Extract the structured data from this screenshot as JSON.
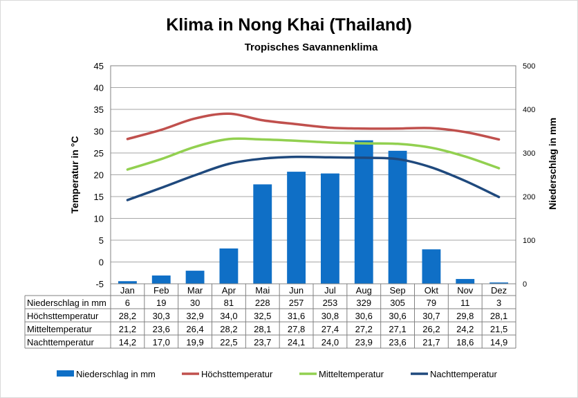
{
  "chart_data": {
    "type": "bar+line",
    "title": "Klima in Nong Khai (Thailand)",
    "subtitle": "Tropisches Savannenklima",
    "categories": [
      "Jan",
      "Feb",
      "Mar",
      "Apr",
      "Mai",
      "Jun",
      "Jul",
      "Aug",
      "Sep",
      "Okt",
      "Nov",
      "Dez"
    ],
    "ylabel_left": "Temperatur in °C",
    "ylabel_right": "Niederschlag in mm",
    "ylim_left": [
      -5,
      45
    ],
    "ylim_right": [
      0,
      500
    ],
    "yticks_left": [
      "45",
      "40",
      "35",
      "30",
      "25",
      "20",
      "15",
      "10",
      "5",
      "0",
      "-5"
    ],
    "yticks_right": [
      "500",
      "400",
      "300",
      "200",
      "100",
      "0"
    ],
    "grid": true,
    "legend_position": "bottom",
    "series": [
      {
        "name": "Niederschlag in mm",
        "kind": "bar",
        "axis": "right",
        "color": "#0f6fc6",
        "values": [
          6,
          19,
          30,
          81,
          228,
          257,
          253,
          329,
          305,
          79,
          11,
          3
        ],
        "labels": [
          "6",
          "19",
          "30",
          "81",
          "228",
          "257",
          "253",
          "329",
          "305",
          "79",
          "11",
          "3"
        ]
      },
      {
        "name": "Höchsttemperatur",
        "kind": "line",
        "axis": "left",
        "color": "#c0504d",
        "values": [
          28.2,
          30.3,
          32.9,
          34.0,
          32.5,
          31.6,
          30.8,
          30.6,
          30.6,
          30.7,
          29.8,
          28.1
        ],
        "labels": [
          "28,2",
          "30,3",
          "32,9",
          "34,0",
          "32,5",
          "31,6",
          "30,8",
          "30,6",
          "30,6",
          "30,7",
          "29,8",
          "28,1"
        ]
      },
      {
        "name": "Mitteltemperatur",
        "kind": "line",
        "axis": "left",
        "color": "#92d050",
        "values": [
          21.2,
          23.6,
          26.4,
          28.2,
          28.1,
          27.8,
          27.4,
          27.2,
          27.1,
          26.2,
          24.2,
          21.5
        ],
        "labels": [
          "21,2",
          "23,6",
          "26,4",
          "28,2",
          "28,1",
          "27,8",
          "27,4",
          "27,2",
          "27,1",
          "26,2",
          "24,2",
          "21,5"
        ]
      },
      {
        "name": "Nachttemperatur",
        "kind": "line",
        "axis": "left",
        "color": "#1f497d",
        "values": [
          14.2,
          17.0,
          19.9,
          22.5,
          23.7,
          24.1,
          24.0,
          23.9,
          23.6,
          21.7,
          18.6,
          14.9
        ],
        "labels": [
          "14,2",
          "17,0",
          "19,9",
          "22,5",
          "23,7",
          "24,1",
          "24,0",
          "23,9",
          "23,6",
          "21,7",
          "18,6",
          "14,9"
        ]
      }
    ]
  }
}
